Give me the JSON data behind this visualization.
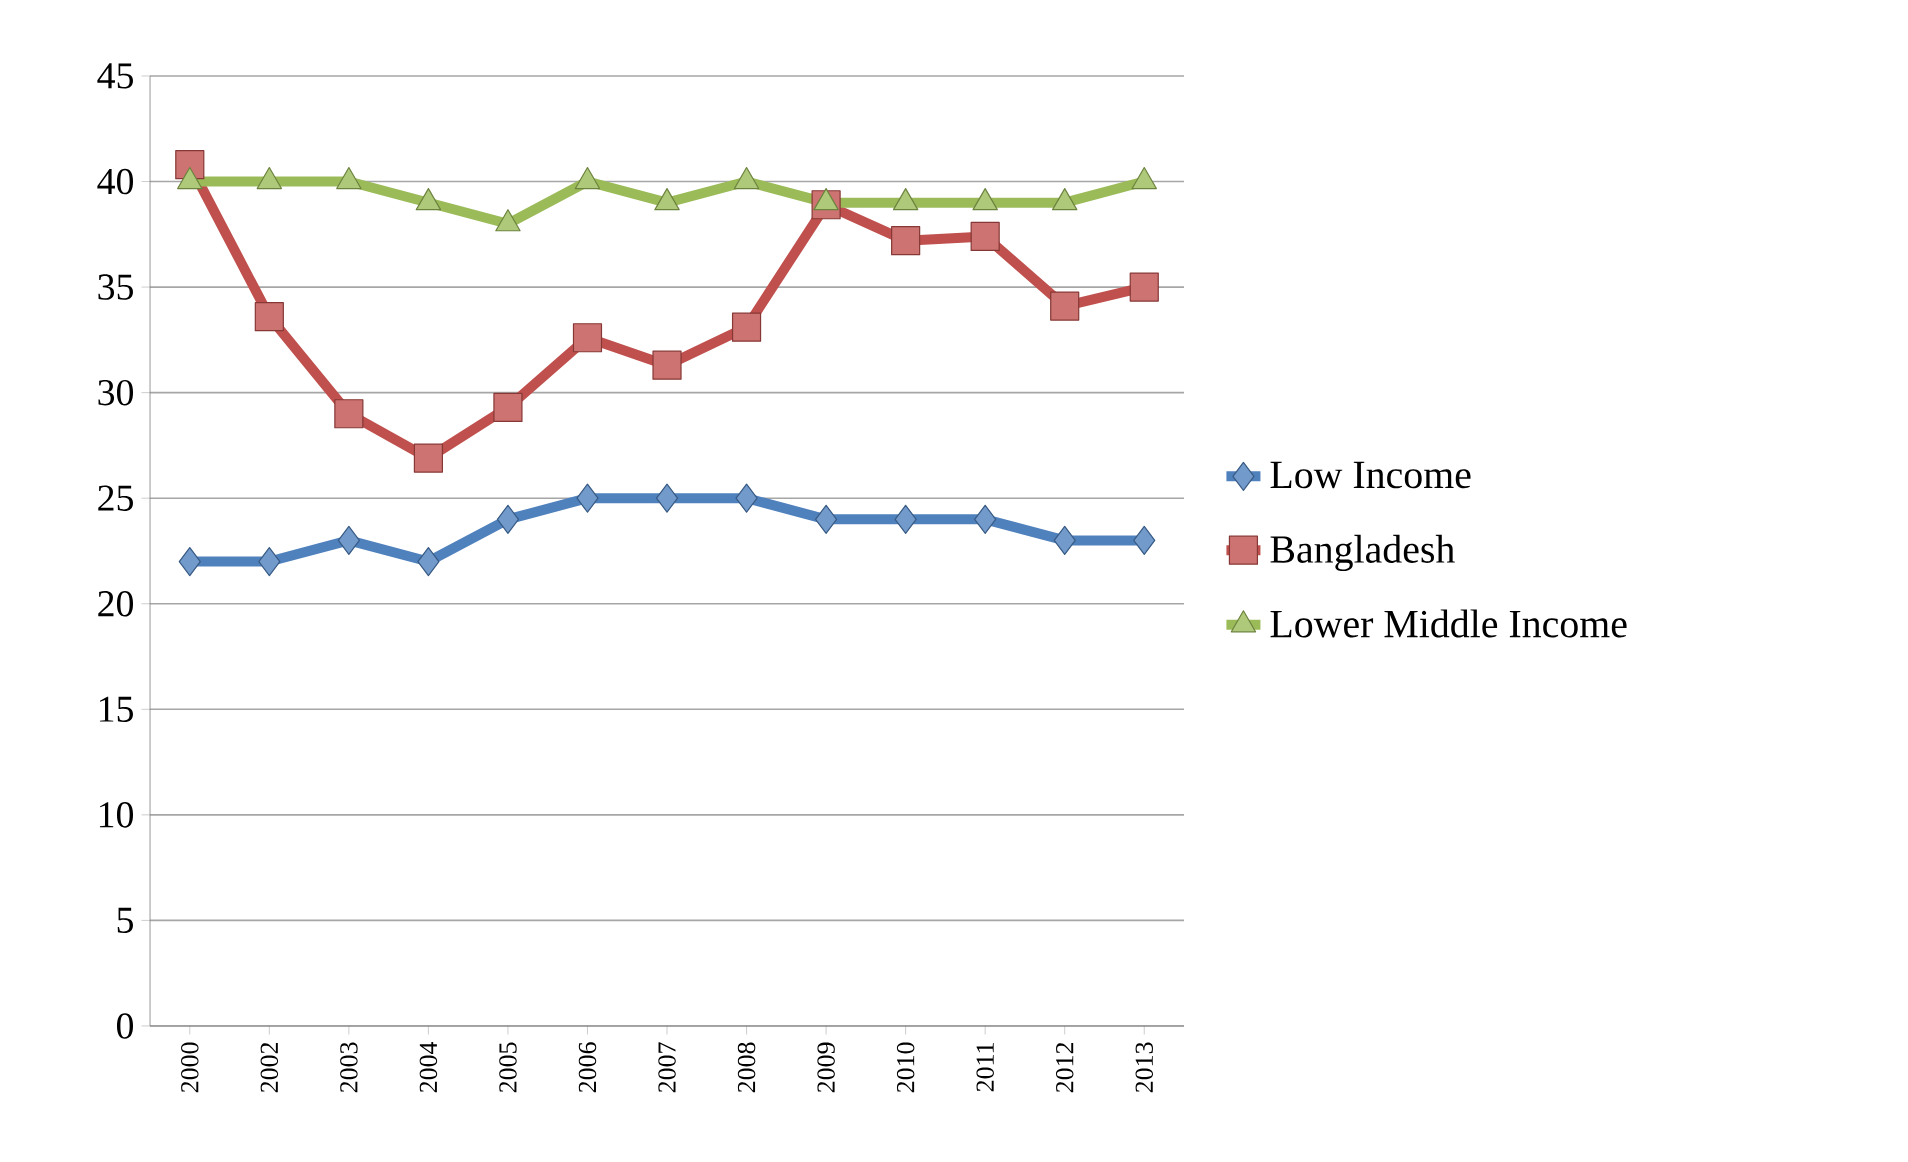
{
  "chart_data": {
    "type": "line",
    "categories": [
      "2000",
      "2002",
      "2003",
      "2004",
      "2005",
      "2006",
      "2007",
      "2008",
      "2009",
      "2010",
      "2011",
      "2012",
      "2013"
    ],
    "series": [
      {
        "name": "Low Income",
        "color": "#4f81bd",
        "marker": "diamond",
        "values": [
          22,
          22,
          23,
          22,
          24,
          25,
          25,
          25,
          24,
          24,
          24,
          23,
          23
        ]
      },
      {
        "name": "Bangladesh",
        "color": "#c0504d",
        "marker": "square",
        "values": [
          40.8,
          33.6,
          29.0,
          26.9,
          29.3,
          32.6,
          31.3,
          33.1,
          38.9,
          37.2,
          37.4,
          34.1,
          35.0
        ]
      },
      {
        "name": "Lower Middle Income",
        "color": "#9bbb59",
        "marker": "triangle",
        "values": [
          40,
          40,
          40,
          39,
          38,
          40,
          39,
          40,
          39,
          39,
          39,
          39,
          40
        ]
      }
    ],
    "ylim": [
      0,
      45
    ],
    "yticks": [
      0,
      5,
      10,
      15,
      20,
      25,
      30,
      35,
      40,
      45
    ],
    "grid": "y",
    "legend": "right",
    "line_style": "solid"
  }
}
